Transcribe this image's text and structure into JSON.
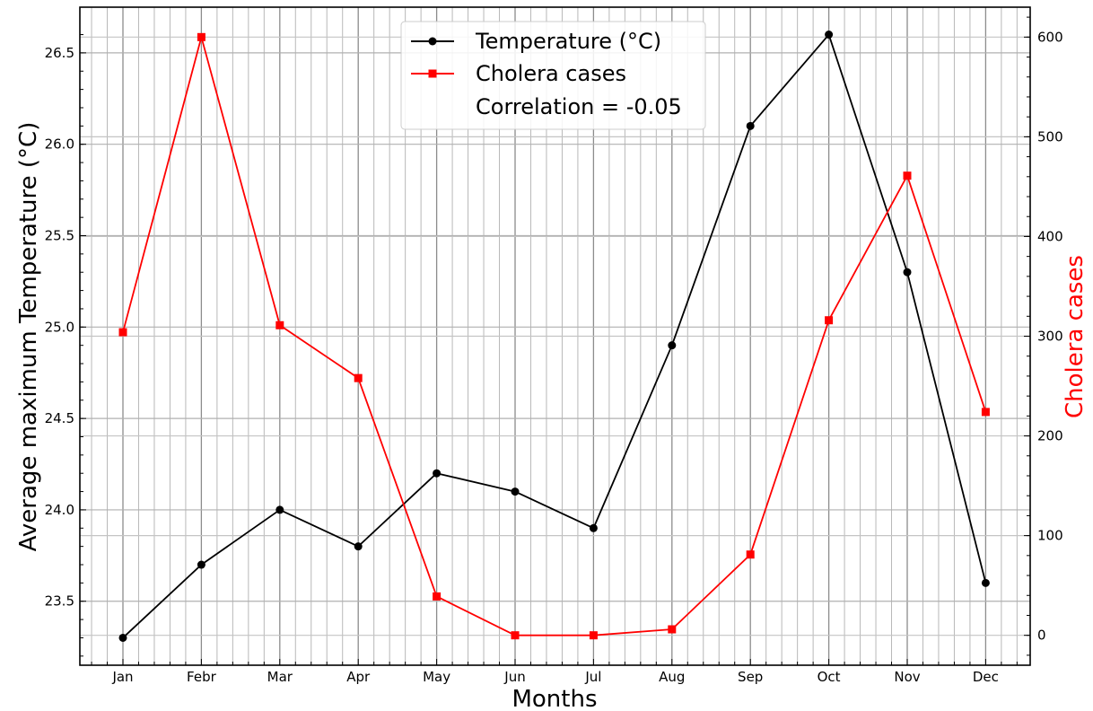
{
  "chart_data": {
    "type": "line",
    "categories": [
      "Jan",
      "Febr",
      "Mar",
      "Apr",
      "May",
      "Jun",
      "Jul",
      "Aug",
      "Sep",
      "Oct",
      "Nov",
      "Dec"
    ],
    "xlabel": "Months",
    "ylabel_left": "Average maximum Temperature (°C)",
    "ylabel_right": "Cholera cases",
    "ylim_left": [
      23.15,
      26.75
    ],
    "ylim_right": [
      -30,
      630
    ],
    "yticks_left": [
      "23.5",
      "24.0",
      "24.5",
      "25.0",
      "25.5",
      "26.0",
      "26.5"
    ],
    "yticks_right": [
      "0",
      "100",
      "200",
      "300",
      "400",
      "500",
      "600"
    ],
    "grid": true,
    "legend_position": "upper-center",
    "series": [
      {
        "name": "Temperature (°C)",
        "axis": "left",
        "color": "#000000",
        "marker": "circle",
        "values": [
          23.3,
          23.7,
          24.0,
          23.8,
          24.2,
          24.1,
          23.9,
          24.9,
          26.1,
          26.6,
          25.3,
          23.6
        ]
      },
      {
        "name": "Cholera cases",
        "axis": "right",
        "color": "#ff0000",
        "marker": "square",
        "values": [
          304,
          600,
          311,
          258,
          39,
          0,
          0,
          6,
          81,
          316,
          461,
          224
        ]
      }
    ],
    "legend_note": "Correlation = -0.05"
  }
}
